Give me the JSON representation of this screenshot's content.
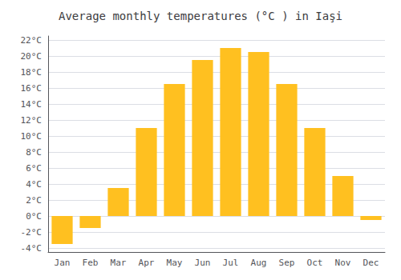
{
  "chart_data": {
    "type": "bar",
    "title": "Average monthly temperatures (°C ) in Iaşi",
    "categories": [
      "Jan",
      "Feb",
      "Mar",
      "Apr",
      "May",
      "Jun",
      "Jul",
      "Aug",
      "Sep",
      "Oct",
      "Nov",
      "Dec"
    ],
    "values": [
      -3.5,
      -1.5,
      3.5,
      11.0,
      16.5,
      19.5,
      21.0,
      20.5,
      16.5,
      11.0,
      5.0,
      -0.5
    ],
    "color": "#FFC020",
    "ylim": [
      -4.5,
      22.5
    ],
    "yticks": [
      {
        "value": -4,
        "label": "-4°C"
      },
      {
        "value": -2,
        "label": "-2°C"
      },
      {
        "value": 0,
        "label": "0°C"
      },
      {
        "value": 2,
        "label": "2°C"
      },
      {
        "value": 4,
        "label": "4°C"
      },
      {
        "value": 6,
        "label": "6°C"
      },
      {
        "value": 8,
        "label": "8°C"
      },
      {
        "value": 10,
        "label": "10°C"
      },
      {
        "value": 12,
        "label": "12°C"
      },
      {
        "value": 14,
        "label": "14°C"
      },
      {
        "value": 16,
        "label": "16°C"
      },
      {
        "value": 18,
        "label": "18°C"
      },
      {
        "value": 20,
        "label": "20°C"
      },
      {
        "value": 22,
        "label": "22°C"
      }
    ],
    "grid": true
  }
}
